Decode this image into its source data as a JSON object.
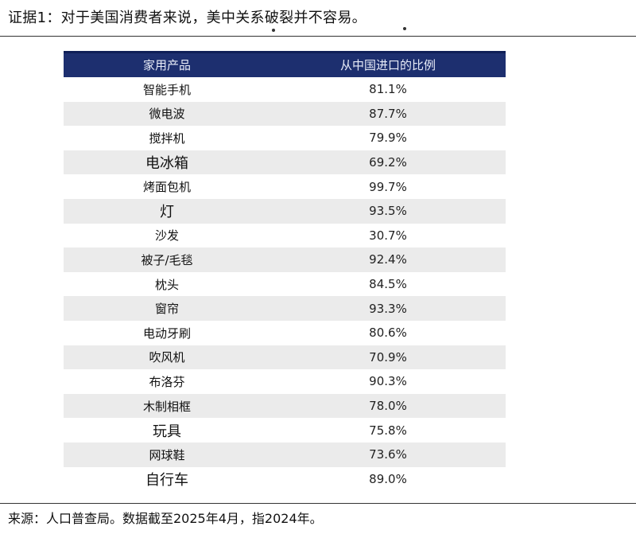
{
  "title": "证据1：对于美国消费者来说，美中关系破裂并不容易。",
  "table": {
    "headers": [
      "家用产品",
      "从中国进口的比例"
    ],
    "rows": [
      {
        "product": "智能手机",
        "share": "81.1%"
      },
      {
        "product": "微电波",
        "share": "87.7%"
      },
      {
        "product": "搅拌机",
        "share": "79.9%"
      },
      {
        "product": "电冰箱",
        "share": "69.2%"
      },
      {
        "product": "烤面包机",
        "share": "99.7%"
      },
      {
        "product": "灯",
        "share": "93.5%"
      },
      {
        "product": "沙发",
        "share": "30.7%"
      },
      {
        "product": "被子/毛毯",
        "share": "92.4%"
      },
      {
        "product": "枕头",
        "share": "84.5%"
      },
      {
        "product": "窗帘",
        "share": "93.3%"
      },
      {
        "product": "电动牙刷",
        "share": "80.6%"
      },
      {
        "product": "吹风机",
        "share": "70.9%"
      },
      {
        "product": "布洛芬",
        "share": "90.3%"
      },
      {
        "product": "木制相框",
        "share": "78.0%"
      },
      {
        "product": "玩具",
        "share": "75.8%"
      },
      {
        "product": "网球鞋",
        "share": "73.6%"
      },
      {
        "product": "自行车",
        "share": "89.0%"
      }
    ]
  },
  "source": "来源：人口普查局。数据截至2025年4月，指2024年。",
  "colors": {
    "header_bg": "#1d2f6f",
    "stripe": "#ebebeb"
  }
}
